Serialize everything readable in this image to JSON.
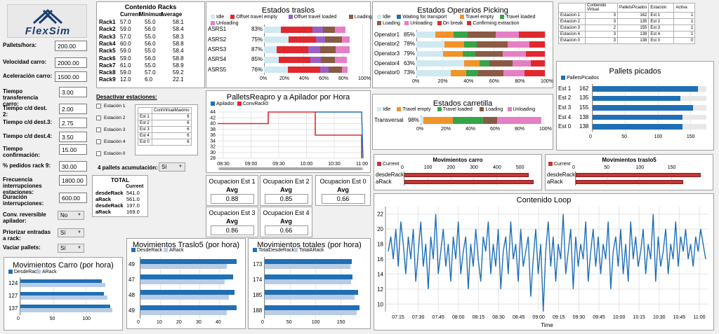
{
  "logo": {
    "text": "FlexSim"
  },
  "params": [
    {
      "label": "Pallets/hora:",
      "value": "200.00"
    },
    {
      "label": "Velocidad carro:",
      "value": "2000.00"
    },
    {
      "label": "Aceleración carro:",
      "value": "1500.00"
    },
    {
      "label": "Tiempo transferencia carro:",
      "value": "3.00"
    },
    {
      "label": "Tiempo c/d dest. 2:",
      "value": "2.00"
    },
    {
      "label": "Tiempo c/d dest.3:",
      "value": "2.75"
    },
    {
      "label": "Tiempo c/d dest.4:",
      "value": "3.50"
    },
    {
      "label": "Tiempo confirmación:",
      "value": "15.00"
    },
    {
      "label": "% pedidos rack 9:",
      "value": "30.00"
    },
    {
      "label": "Frecuencia interrupciones estaciones:",
      "value": "1800.00"
    },
    {
      "label": "Duración interrupciones:",
      "value": "600.00"
    }
  ],
  "selects": [
    {
      "label": "Conv. reversible apilador:",
      "value": "No"
    },
    {
      "label": "Priorizar entradas a rack:",
      "value": "Sí"
    },
    {
      "label": "Vaciar pallets:",
      "value": "Sí"
    }
  ],
  "acum": {
    "label": "4 pallets acumulación:",
    "value": "Sí"
  },
  "racks": {
    "title": "Contenido Racks",
    "headers": [
      "Current",
      "Minimum",
      "Average"
    ],
    "rows": [
      [
        "Rack1",
        "57.0",
        "55.0",
        "58.1"
      ],
      [
        "Rack2",
        "59.0",
        "56.0",
        "58.4"
      ],
      [
        "Rack3",
        "57.0",
        "55.0",
        "58.3"
      ],
      [
        "Rack4",
        "60.0",
        "56.0",
        "58.8"
      ],
      [
        "Rack5",
        "59.0",
        "55.0",
        "58.4"
      ],
      [
        "Rack6",
        "59.0",
        "56.0",
        "58.8"
      ],
      [
        "Rack7",
        "61.0",
        "55.0",
        "58.9"
      ],
      [
        "Rack8",
        "59.0",
        "57.0",
        "59.2"
      ],
      [
        "Rack9",
        "12.0",
        "6.0",
        "22.1"
      ]
    ]
  },
  "desactivar": {
    "title": "Desactivar estaciones:",
    "items": [
      "Estación 1",
      "Estación 2",
      "Estación 3",
      "Estación 4",
      "Estación 0"
    ],
    "table_header": "ContVirtualMaximo",
    "table_rows": [
      [
        "Est 1",
        "6"
      ],
      [
        "Est 2",
        "6"
      ],
      [
        "Est 3",
        "6"
      ],
      [
        "Est 4",
        "6"
      ],
      [
        "Est 0",
        "6"
      ]
    ]
  },
  "total": {
    "title": "TOTAL",
    "header": "Current",
    "rows": [
      [
        "desdeRack",
        "541.0"
      ],
      [
        "aRack",
        "561.0"
      ],
      [
        "desdeRack",
        "197.0"
      ],
      [
        "aRack",
        "169.0"
      ]
    ]
  },
  "estados_traslos": {
    "title": "Estados traslos",
    "legend": [
      {
        "name": "Idle",
        "color": "#cfe9f1"
      },
      {
        "name": "Offset travel empty",
        "color": "#e0282e"
      },
      {
        "name": "Offset travel loaded",
        "color": "#9a5fc7"
      },
      {
        "name": "Loading",
        "color": "#8b5a44"
      },
      {
        "name": "Unloading",
        "color": "#e57fc5"
      }
    ],
    "rows": [
      {
        "name": "ASRS1",
        "pct": "83%",
        "segs": [
          17,
          32,
          11,
          12,
          11
        ]
      },
      {
        "name": "ASRS2",
        "pct": "75%",
        "segs": [
          25,
          28,
          9,
          17,
          8
        ]
      },
      {
        "name": "ASRS3",
        "pct": "87%",
        "segs": [
          13,
          32,
          12,
          16,
          14
        ]
      },
      {
        "name": "ASRS4",
        "pct": "85%",
        "segs": [
          15,
          32,
          11,
          14,
          12
        ]
      },
      {
        "name": "ASRS5",
        "pct": "76%",
        "segs": [
          24,
          33,
          9,
          13,
          6
        ]
      }
    ],
    "ticks": [
      "0%",
      "20%",
      "40%",
      "60%",
      "80%",
      "100%"
    ]
  },
  "estados_operarios": {
    "title": "Estados Operarios Picking",
    "legend": [
      {
        "name": "Idle",
        "color": "#cfe9f1"
      },
      {
        "name": "Waiting for transport",
        "color": "#1f6fb5"
      },
      {
        "name": "Travel empty",
        "color": "#f39228"
      },
      {
        "name": "Travel loaded",
        "color": "#36a447"
      },
      {
        "name": "Loading",
        "color": "#8b5a44"
      },
      {
        "name": "Unloading",
        "color": "#e57fc5"
      },
      {
        "name": "On break",
        "color": "#e0282e"
      },
      {
        "name": "Confirming extraction",
        "color": "#d62e2e"
      }
    ],
    "rows": [
      {
        "name": "Operator1",
        "pct": "85%",
        "segs": [
          15,
          0,
          14,
          11,
          22,
          18,
          15,
          5
        ]
      },
      {
        "name": "Operator2",
        "pct": "78%",
        "segs": [
          22,
          0,
          15,
          10,
          24,
          17,
          12,
          0
        ]
      },
      {
        "name": "Operator3",
        "pct": "79%",
        "segs": [
          21,
          0,
          15,
          10,
          21,
          18,
          15,
          0
        ]
      },
      {
        "name": "Operator4",
        "pct": "63%",
        "segs": [
          37,
          0,
          12,
          8,
          18,
          14,
          11,
          0
        ]
      },
      {
        "name": "Operator0",
        "pct": "73%",
        "segs": [
          27,
          0,
          12,
          9,
          20,
          16,
          16,
          0
        ]
      }
    ],
    "ticks": [
      "0%",
      "20%",
      "40%",
      "60%",
      "80%",
      "100%"
    ]
  },
  "estados_carretilla": {
    "title": "Estados carretilla",
    "legend": [
      {
        "name": "Idle",
        "color": "#cfe9f1"
      },
      {
        "name": "Travel empty",
        "color": "#f39228"
      },
      {
        "name": "Travel loaded",
        "color": "#36a447"
      },
      {
        "name": "Loading",
        "color": "#8b5a44"
      },
      {
        "name": "Unloading",
        "color": "#e57fc5"
      }
    ],
    "rows": [
      {
        "name": "Transversal",
        "pct": "98%",
        "segs": [
          2,
          24,
          25,
          11,
          36
        ]
      }
    ],
    "ticks": [
      "0%",
      "20%",
      "40%",
      "60%",
      "80%",
      "100%"
    ]
  },
  "tabla_estaciones": {
    "headers": [
      "",
      "Contenido Virtual",
      "PalletsPicados",
      "Estacion",
      "Activa"
    ],
    "rows": [
      [
        "Estacion 1",
        "3",
        "162",
        "Est 1",
        "1"
      ],
      [
        "Estacion 2",
        "3",
        "135",
        "Est 2",
        "1"
      ],
      [
        "Estacion 3",
        "2",
        "155",
        "Est 3",
        "1"
      ],
      [
        "Estacion 4",
        "3",
        "138",
        "Est 4",
        "1"
      ],
      [
        "Estacion 0",
        "3",
        "138",
        "Est 0",
        "0"
      ]
    ]
  },
  "pallets_picados": {
    "title": "Pallets picados",
    "legend": "PalletsPicados",
    "rows": [
      [
        "Est 1",
        "162"
      ],
      [
        "Est 2",
        "135"
      ],
      [
        "Est 3",
        "155"
      ],
      [
        "Est 4",
        "138"
      ],
      [
        "Est 0",
        "138"
      ]
    ],
    "ticks": [
      "0",
      "50",
      "100",
      "150"
    ]
  },
  "pallets_reapro": {
    "title": "PalletsReapro y a Apilador por Hora",
    "legend": [
      {
        "name": "Apilador",
        "color": "#1f6fb5"
      },
      {
        "name": "ConvRack0",
        "color": "#e0282e"
      }
    ],
    "yticks": [
      "44",
      "42",
      "40",
      "38",
      "36",
      "34",
      "32",
      "30",
      "28"
    ],
    "xticks": [
      "08:30",
      "09:00",
      "09:30",
      "10:00",
      "10:30",
      "11:00"
    ]
  },
  "ocupacion": [
    {
      "title": "Ocupacion Est 1",
      "avg": "Avg",
      "value": "0.88"
    },
    {
      "title": "Ocupacion Est 2",
      "avg": "Avg",
      "value": "0.85"
    },
    {
      "title": "Ocupacion Est 0",
      "avg": "Avg",
      "value": "0.66"
    },
    {
      "title": "Ocupacion Est 3",
      "avg": "Avg",
      "value": "0.86"
    },
    {
      "title": "Ocupacion Est 4",
      "avg": "Avg",
      "value": "0.66"
    }
  ],
  "mov_carro": {
    "title": "Movimientos carro",
    "legend": "Current",
    "rows": [
      [
        "desdeRack",
        541
      ],
      [
        "aRack",
        561
      ]
    ],
    "ticks": [
      "0",
      "100",
      "200",
      "300",
      "400",
      "500"
    ]
  },
  "mov_traslo5": {
    "title": "Movimientos traslo5",
    "legend": "Current",
    "rows": [
      [
        "desdeRack",
        197
      ],
      [
        "aRack",
        169
      ]
    ],
    "ticks": [
      "0",
      "50",
      "100",
      "150"
    ]
  },
  "contenido_loop": {
    "title": "Contenido Loop",
    "xlabel": "Time",
    "yticks": [
      "22",
      "20",
      "18",
      "16",
      "14",
      "12",
      "10"
    ],
    "xticks": [
      "07:15",
      "07:30",
      "07:45",
      "08:00",
      "08:15",
      "08:30",
      "08:45",
      "09:00",
      "09:15",
      "09:30",
      "09:45",
      "10:00",
      "10:15",
      "10:30",
      "10:45",
      "11:00"
    ]
  },
  "mov_carro_hora": {
    "title": "Movimientos Carro (por hora)",
    "legend": [
      {
        "name": "DesdeRack",
        "color": "#1f6fb5"
      },
      {
        "name": "ARack",
        "color": "#b8cce4"
      }
    ],
    "rows": [
      {
        "label": "124",
        "a": 124,
        "b": 130
      },
      {
        "label": "127",
        "a": 127,
        "b": 133
      },
      {
        "label": "137",
        "a": 137,
        "b": 140
      }
    ],
    "ticks": [
      "0",
      "50",
      "100"
    ]
  },
  "mov_traslo5_hora": {
    "title": "Movimientos Traslo5 (por hora)",
    "legend": [
      {
        "name": "DesdeRack",
        "color": "#1f6fb5"
      },
      {
        "name": "ARack",
        "color": "#b8cce4"
      }
    ],
    "rows": [
      {
        "label": "49",
        "a": 49,
        "b": 44
      },
      {
        "label": "47",
        "a": 47,
        "b": 43
      },
      {
        "label": "48",
        "a": 48,
        "b": 45
      },
      {
        "label": "49",
        "a": 49,
        "b": 44
      }
    ],
    "ticks": [
      "0",
      "10",
      "20",
      "30",
      "40"
    ]
  },
  "mov_totales": {
    "title": "Movimientos totales (por hora)",
    "legend": [
      {
        "name": "TotalDesdeRack",
        "color": "#1f6fb5"
      },
      {
        "name": "TotalARack",
        "color": "#b8cce4"
      }
    ],
    "rows": [
      {
        "label": "173",
        "a": 173,
        "b": 170
      },
      {
        "label": "174",
        "a": 174,
        "b": 172
      },
      {
        "label": "185",
        "a": 185,
        "b": 178
      },
      {
        "label": "188",
        "a": 188,
        "b": 182
      }
    ],
    "ticks": [
      "0",
      "50",
      "100",
      "150"
    ]
  },
  "chart_data": [
    {
      "type": "bar",
      "title": "Estados traslos",
      "categories": [
        "ASRS1",
        "ASRS2",
        "ASRS3",
        "ASRS4",
        "ASRS5"
      ]
    },
    {
      "type": "bar",
      "title": "Pallets picados",
      "categories": [
        "Est 1",
        "Est 2",
        "Est 3",
        "Est 4",
        "Est 0"
      ],
      "values": [
        162,
        135,
        155,
        138,
        138
      ]
    },
    {
      "type": "bar",
      "title": "Movimientos carro",
      "categories": [
        "desdeRack",
        "aRack"
      ],
      "values": [
        541,
        561
      ]
    },
    {
      "type": "bar",
      "title": "Movimientos traslo5",
      "categories": [
        "desdeRack",
        "aRack"
      ],
      "values": [
        197,
        169
      ]
    },
    {
      "type": "line",
      "title": "Contenido Loop",
      "xlabel": "Time",
      "ylim": [
        9,
        23
      ],
      "y": [
        17,
        19,
        16,
        20,
        15,
        21,
        18,
        14,
        19,
        16,
        20,
        13,
        17,
        21,
        15,
        18,
        12,
        19,
        16,
        22,
        14,
        17,
        20,
        15,
        18,
        13,
        19,
        16,
        21,
        14,
        17,
        19,
        12,
        18,
        15,
        20,
        16,
        13,
        19,
        17,
        21,
        14,
        18,
        15,
        20,
        12,
        17,
        19,
        14,
        21,
        16,
        18,
        13,
        20,
        15,
        17,
        19,
        11,
        16,
        20,
        14,
        18,
        9,
        17,
        21,
        15,
        19,
        13,
        18,
        16,
        22,
        14,
        17,
        20,
        12,
        19,
        15,
        18,
        16,
        21,
        13,
        17,
        20,
        15,
        19,
        14,
        18,
        16,
        21,
        12,
        17,
        19,
        15,
        20,
        14,
        18,
        13,
        21,
        16,
        19,
        15,
        17,
        20,
        14,
        18,
        16,
        22,
        13,
        19,
        15,
        17,
        20,
        14,
        18,
        16,
        21,
        15,
        19,
        17,
        20,
        16,
        18,
        15,
        19,
        17,
        20,
        18,
        16
      ]
    },
    {
      "type": "bar",
      "title": "Movimientos Carro (por hora)"
    },
    {
      "type": "bar",
      "title": "Movimientos Traslo5 (por hora)"
    },
    {
      "type": "bar",
      "title": "Movimientos totales (por hora)"
    }
  ]
}
